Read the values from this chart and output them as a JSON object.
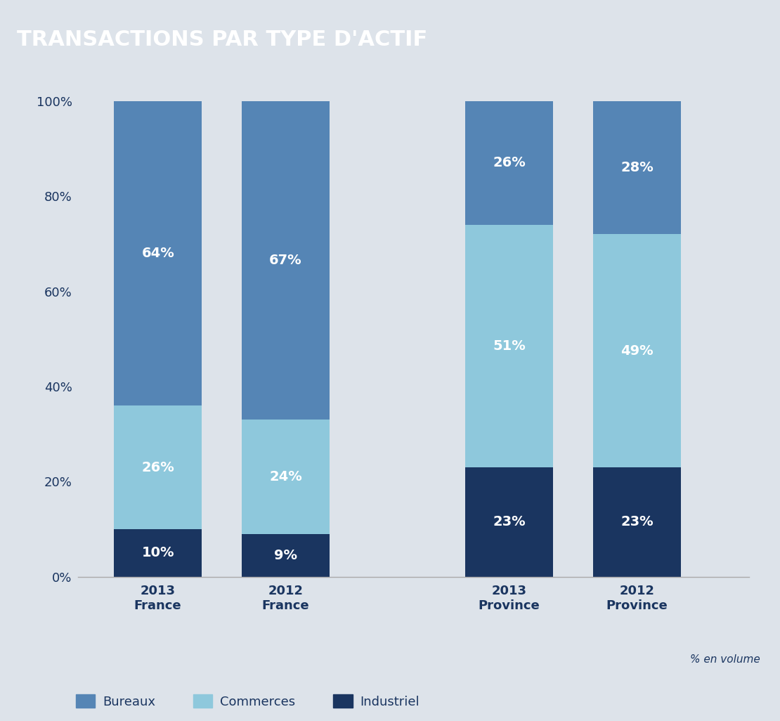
{
  "title": "TRANSACTIONS PAR TYPE D'ACTIF",
  "title_bg_color": "#0d3567",
  "title_text_color": "#ffffff",
  "background_color": "#dde3ea",
  "plot_bg_color": "#dde3ea",
  "series": {
    "Bureaux": {
      "values": [
        64,
        67,
        26,
        28
      ],
      "color": "#5585b5"
    },
    "Commerces": {
      "values": [
        26,
        24,
        51,
        49
      ],
      "color": "#8ec8dc"
    },
    "Industriel": {
      "values": [
        10,
        9,
        23,
        23
      ],
      "color": "#1a3560"
    }
  },
  "ylim": [
    0,
    100
  ],
  "yticks": [
    0,
    20,
    40,
    60,
    80,
    100
  ],
  "ytick_labels": [
    "0%",
    "20%",
    "40%",
    "60%",
    "80%",
    "100%"
  ],
  "ylabel": "% en volume",
  "bar_width": 0.55,
  "positions": [
    0.5,
    1.3,
    2.7,
    3.5
  ],
  "xtick_labels": [
    "2013\nFrance",
    "2012\nFrance",
    "2013\nProvince",
    "2012\nProvince"
  ],
  "legend_items": [
    "Bureaux",
    "Commerces",
    "Industriel"
  ],
  "text_color_white": "#ffffff",
  "axis_label_color": "#1a3560",
  "tick_label_color": "#1a3560",
  "legend_text_color": "#1a3560",
  "spine_color": "#aaaaaa"
}
